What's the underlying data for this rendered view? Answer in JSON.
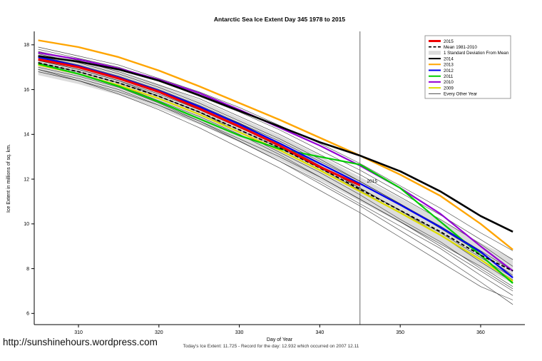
{
  "title": "Antarctic Sea Ice Extent Day 345 1978 to 2015",
  "footer": {
    "link": "http://sunshinehours.wordpress.com",
    "note": "Today's Ice Extent: 11.725  - Record for the day: 12.932 which occurred on 2007 12.11"
  },
  "chart_data": {
    "type": "line",
    "title": "Antarctic Sea Ice Extent Day 345 1978 to 2015",
    "xlabel": "Day of Year",
    "ylabel": "Ice Extent in millions of sq. km.",
    "xlim": [
      304.5,
      365.5
    ],
    "ylim": [
      5.5,
      18.6
    ],
    "xticks": [
      310,
      320,
      330,
      340,
      350,
      360
    ],
    "yticks": [
      6,
      8,
      10,
      12,
      14,
      16,
      18
    ],
    "grid": false,
    "legend_position": "top-right",
    "vline_x": 345,
    "annotation": {
      "text": "2015",
      "x": 345.6,
      "y": 11.85,
      "color": "#EE0000"
    },
    "x": [
      305,
      310,
      315,
      320,
      325,
      330,
      335,
      340,
      345,
      350,
      355,
      360,
      364
    ],
    "band": {
      "label": "1 Standard Deviation From Mean",
      "color": "#DCDCDC",
      "upper": [
        17.75,
        17.35,
        16.85,
        16.25,
        15.55,
        14.75,
        13.95,
        13.05,
        12.1,
        11.15,
        10.2,
        9.15,
        8.45
      ],
      "lower": [
        16.65,
        16.25,
        15.75,
        15.15,
        14.45,
        13.65,
        12.85,
        11.95,
        11.0,
        10.05,
        9.1,
        8.05,
        7.35
      ]
    },
    "series": [
      {
        "name": "2009",
        "color": "#DDDD00",
        "width": 2.2,
        "values": [
          17.1,
          16.7,
          16.2,
          15.6,
          14.9,
          14.1,
          13.3,
          12.4,
          11.45,
          10.5,
          9.5,
          8.4,
          7.45
        ]
      },
      {
        "name": "2010",
        "color": "#9400D3",
        "width": 2.2,
        "values": [
          17.65,
          17.35,
          16.95,
          16.45,
          15.85,
          15.1,
          14.3,
          13.5,
          12.6,
          11.6,
          10.45,
          9.0,
          7.9
        ]
      },
      {
        "name": "2011",
        "color": "#00CC00",
        "width": 2.2,
        "values": [
          17.15,
          16.7,
          16.15,
          15.45,
          14.7,
          13.95,
          13.35,
          13.0,
          12.65,
          11.6,
          10.1,
          8.6,
          7.35
        ]
      },
      {
        "name": "2012",
        "color": "#0000EE",
        "width": 2.2,
        "values": [
          17.45,
          17.05,
          16.55,
          15.95,
          15.25,
          14.45,
          13.6,
          12.7,
          11.8,
          10.85,
          9.85,
          8.75,
          7.6
        ]
      },
      {
        "name": "2013",
        "color": "#FFA500",
        "width": 2.4,
        "values": [
          18.2,
          17.9,
          17.45,
          16.85,
          16.15,
          15.4,
          14.65,
          13.85,
          13.05,
          12.2,
          11.25,
          10.0,
          8.85
        ]
      },
      {
        "name": "2014",
        "color": "#000000",
        "width": 2.6,
        "values": [
          17.5,
          17.25,
          16.9,
          16.4,
          15.75,
          15.05,
          14.35,
          13.65,
          13.05,
          12.35,
          11.45,
          10.35,
          9.65
        ]
      },
      {
        "name": "Mean 1981-2010",
        "color": "#000000",
        "width": 1.8,
        "dash": "5,3",
        "values": [
          17.2,
          16.8,
          16.3,
          15.7,
          15.0,
          14.2,
          13.4,
          12.5,
          11.55,
          10.6,
          9.65,
          8.6,
          7.9
        ]
      },
      {
        "name": "2015",
        "color": "#EE0000",
        "width": 3.2,
        "values": [
          17.35,
          17.0,
          16.5,
          15.9,
          15.15,
          14.35,
          13.5,
          12.55,
          11.725,
          null,
          null,
          null,
          null
        ]
      }
    ],
    "other_years": {
      "label": "Every Other Year",
      "color": "#1B1B1B",
      "lines": [
        [
          17.0,
          16.6,
          16.1,
          15.4,
          14.6,
          13.7,
          12.8,
          11.8,
          10.8,
          9.7,
          8.6,
          7.4,
          6.4
        ],
        [
          16.9,
          16.5,
          16.0,
          15.3,
          14.5,
          13.7,
          12.8,
          11.9,
          10.9,
          9.9,
          8.9,
          7.7,
          6.8
        ],
        [
          17.1,
          16.7,
          16.2,
          15.5,
          14.8,
          14.0,
          13.1,
          12.1,
          11.1,
          10.1,
          9.0,
          7.9,
          7.0
        ],
        [
          17.3,
          16.9,
          16.4,
          15.7,
          15.0,
          14.1,
          13.2,
          12.3,
          11.3,
          10.2,
          9.2,
          8.0,
          7.1
        ],
        [
          16.8,
          16.4,
          15.9,
          15.3,
          14.6,
          13.8,
          13.0,
          12.1,
          11.1,
          10.1,
          9.1,
          8.1,
          7.2
        ],
        [
          17.5,
          17.1,
          16.6,
          16.0,
          15.3,
          14.5,
          13.6,
          12.6,
          11.6,
          10.6,
          9.5,
          8.3,
          7.4
        ],
        [
          17.2,
          16.8,
          16.3,
          15.7,
          15.0,
          14.2,
          13.4,
          12.5,
          11.5,
          10.5,
          9.5,
          8.4,
          7.5
        ],
        [
          17.6,
          17.2,
          16.7,
          16.1,
          15.4,
          14.6,
          13.8,
          12.9,
          11.9,
          10.9,
          9.8,
          8.7,
          7.7
        ],
        [
          17.4,
          17.0,
          16.5,
          15.9,
          15.2,
          14.5,
          13.7,
          12.8,
          11.9,
          10.9,
          9.9,
          8.8,
          7.9
        ],
        [
          17.7,
          17.3,
          16.8,
          16.2,
          15.6,
          14.8,
          14.0,
          13.1,
          12.2,
          11.2,
          10.2,
          9.1,
          8.1
        ],
        [
          17.8,
          17.4,
          17.0,
          16.4,
          15.7,
          15.0,
          14.2,
          13.3,
          12.4,
          11.4,
          10.4,
          9.3,
          8.4
        ],
        [
          17.9,
          17.5,
          17.1,
          16.5,
          15.9,
          15.2,
          14.4,
          13.6,
          12.7,
          11.7,
          10.7,
          9.6,
          8.8
        ],
        [
          16.9,
          16.4,
          15.8,
          15.1,
          14.3,
          13.4,
          12.5,
          11.5,
          10.5,
          9.4,
          8.3,
          7.2,
          6.6
        ],
        [
          17.3,
          16.9,
          16.4,
          15.8,
          15.1,
          14.3,
          13.5,
          12.6,
          11.6,
          10.6,
          9.6,
          8.5,
          7.6
        ]
      ]
    },
    "legend": [
      {
        "label": "2015",
        "color": "#EE0000",
        "style": "line",
        "lw": 3
      },
      {
        "label": "Mean 1981-2010",
        "color": "#000000",
        "style": "dashed",
        "lw": 1.6
      },
      {
        "label": "1 Standard Deviation From Mean",
        "color": "#DCDCDC",
        "style": "band",
        "lw": 5
      },
      {
        "label": "2014",
        "color": "#000000",
        "style": "line",
        "lw": 2
      },
      {
        "label": "2013",
        "color": "#FFA500",
        "style": "line",
        "lw": 2
      },
      {
        "label": "2012",
        "color": "#0000EE",
        "style": "line",
        "lw": 2
      },
      {
        "label": "2011",
        "color": "#00CC00",
        "style": "line",
        "lw": 2
      },
      {
        "label": "2010",
        "color": "#9400D3",
        "style": "line",
        "lw": 2
      },
      {
        "label": "2009",
        "color": "#DDDD00",
        "style": "line",
        "lw": 2
      },
      {
        "label": "Every Other Year",
        "color": "#333333",
        "style": "line",
        "lw": 0.8
      }
    ]
  }
}
